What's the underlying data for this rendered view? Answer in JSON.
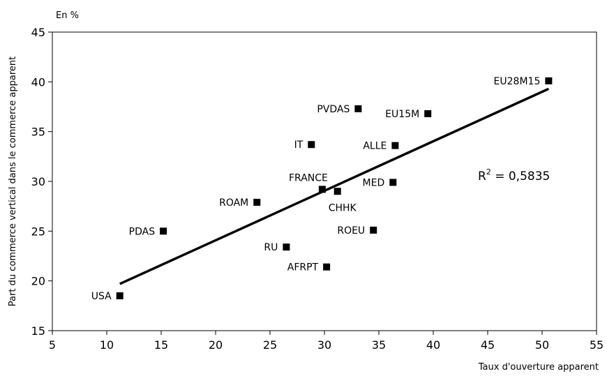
{
  "chart_data": {
    "type": "scatter",
    "unit_label": "En %",
    "xlabel": "Taux d'ouverture apparent",
    "ylabel": "Part du commerce vertical dans le commerce apparent",
    "xlim": [
      5,
      55
    ],
    "ylim": [
      15,
      45
    ],
    "x_ticks": [
      5,
      10,
      15,
      20,
      25,
      30,
      35,
      40,
      45,
      50,
      55
    ],
    "y_ticks": [
      15,
      20,
      25,
      30,
      35,
      40,
      45
    ],
    "grid": false,
    "points": [
      {
        "label": "USA",
        "x": 11.2,
        "y": 18.5
      },
      {
        "label": "PDAS",
        "x": 15.2,
        "y": 25.0
      },
      {
        "label": "ROAM",
        "x": 23.8,
        "y": 27.9
      },
      {
        "label": "RU",
        "x": 26.5,
        "y": 23.4
      },
      {
        "label": "IT",
        "x": 28.8,
        "y": 33.7
      },
      {
        "label": "FRANCE",
        "x": 29.8,
        "y": 29.2
      },
      {
        "label": "AFRPT",
        "x": 30.2,
        "y": 21.4
      },
      {
        "label": "CHHK",
        "x": 31.2,
        "y": 29.0
      },
      {
        "label": "PVDAS",
        "x": 33.1,
        "y": 37.3
      },
      {
        "label": "ROEU",
        "x": 34.5,
        "y": 25.1
      },
      {
        "label": "MED",
        "x": 36.3,
        "y": 29.9
      },
      {
        "label": "ALLE",
        "x": 36.5,
        "y": 33.6
      },
      {
        "label": "EU15M",
        "x": 39.5,
        "y": 36.8
      },
      {
        "label": "EU28M15",
        "x": 50.6,
        "y": 40.1
      }
    ],
    "trendline": {
      "x": [
        11.2,
        50.6
      ],
      "y": [
        19.7,
        39.3
      ]
    },
    "r2_label": "R",
    "r2_exponent": "2",
    "r2_value": " = 0,5835"
  }
}
